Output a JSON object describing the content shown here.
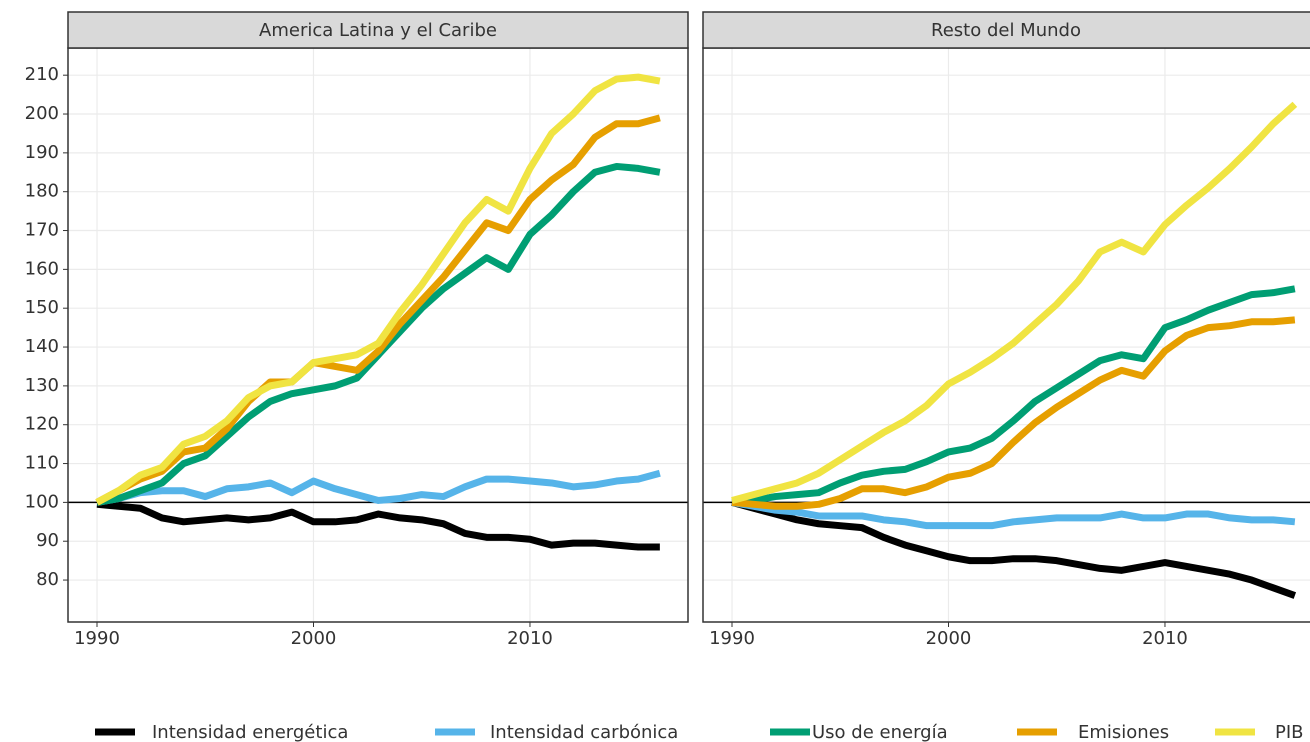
{
  "chart_data": [
    {
      "type": "line",
      "title": "America Latina y el Caribe",
      "x": [
        1990,
        1991,
        1992,
        1993,
        1994,
        1995,
        1996,
        1997,
        1998,
        1999,
        2000,
        2001,
        2002,
        2003,
        2004,
        2005,
        2006,
        2007,
        2008,
        2009,
        2010,
        2011,
        2012,
        2013,
        2014,
        2015,
        2016
      ],
      "xlim": [
        1988.66,
        2017.3
      ],
      "xticks": [
        1990,
        2000,
        2010
      ],
      "ylim": [
        69.2,
        217
      ],
      "yticks": [
        80,
        90,
        100,
        110,
        120,
        130,
        140,
        150,
        160,
        170,
        180,
        190,
        200,
        210
      ],
      "hline": 100,
      "grid": true,
      "legend": "bottom",
      "series": [
        {
          "name": "Intensidad energética",
          "color": "#000000",
          "values": [
            99.5,
            99,
            98.5,
            96,
            95,
            95.5,
            96,
            95.5,
            96,
            97.5,
            95,
            95,
            95.5,
            97,
            96,
            95.5,
            94.5,
            92,
            91,
            91,
            90.5,
            89,
            89.5,
            89.5,
            89,
            88.5,
            88.5
          ]
        },
        {
          "name": "Intensidad carbónica",
          "color": "#56b4e9",
          "values": [
            100,
            101,
            102.5,
            103,
            103,
            101.5,
            103.5,
            104,
            105,
            102.5,
            105.5,
            103.5,
            102,
            100.5,
            101,
            102,
            101.5,
            104,
            106,
            106,
            105.5,
            105,
            104,
            104.5,
            105.5,
            106,
            107.5
          ]
        },
        {
          "name": "Uso de energía",
          "color": "#009e73",
          "values": [
            100,
            101,
            103,
            105,
            110,
            112,
            117,
            122,
            126,
            128,
            129,
            130,
            132,
            138,
            144,
            150,
            155,
            159,
            163,
            160,
            169,
            174,
            180,
            185,
            186.5,
            186,
            185
          ]
        },
        {
          "name": "Emisiones",
          "color": "#e69f00",
          "values": [
            100,
            103,
            106,
            108,
            113,
            114,
            119,
            126,
            131,
            131,
            136,
            135,
            134,
            139,
            146,
            152,
            158,
            165,
            172,
            170,
            178,
            183,
            187,
            194,
            197.5,
            197.5,
            199
          ]
        },
        {
          "name": "PIB",
          "color": "#f0e442",
          "values": [
            100,
            103,
            107,
            109,
            115,
            117,
            121,
            127,
            130,
            131,
            136,
            137,
            138,
            141,
            149,
            156,
            164,
            172,
            178,
            175,
            186,
            195,
            200,
            206,
            209,
            209.5,
            208.5
          ]
        }
      ]
    },
    {
      "type": "line",
      "title": "Resto del Mundo",
      "x": [
        1990,
        1991,
        1992,
        1993,
        1994,
        1995,
        1996,
        1997,
        1998,
        1999,
        2000,
        2001,
        2002,
        2003,
        2004,
        2005,
        2006,
        2007,
        2008,
        2009,
        2010,
        2011,
        2012,
        2013,
        2014,
        2015,
        2016
      ],
      "xlim": [
        1988.66,
        2017.3
      ],
      "xticks": [
        1990,
        2000,
        2010
      ],
      "ylim": [
        69.2,
        217
      ],
      "hline": 100,
      "grid": true,
      "series": [
        {
          "color": "#000000",
          "values": [
            100,
            98.5,
            97,
            95.5,
            94.5,
            94,
            93.5,
            91,
            89,
            87.5,
            86,
            85,
            85,
            85.5,
            85.5,
            85,
            84,
            83,
            82.5,
            83.5,
            84.5,
            83.5,
            82.5,
            81.5,
            80,
            78,
            76
          ]
        },
        {
          "color": "#56b4e9",
          "values": [
            100,
            99,
            98,
            97.5,
            96.5,
            96.5,
            96.5,
            95.5,
            95,
            94,
            94,
            94,
            94,
            95,
            95.5,
            96,
            96,
            96,
            97,
            96,
            96,
            97,
            97,
            96,
            95.5,
            95.5,
            95
          ]
        },
        {
          "color": "#009e73",
          "values": [
            100,
            100.5,
            101.5,
            102,
            102.5,
            105,
            107,
            108,
            108.5,
            110.5,
            113,
            114,
            116.5,
            121,
            126,
            129.5,
            133,
            136.5,
            138,
            137,
            145,
            147,
            149.5,
            151.5,
            153.5,
            154,
            155
          ]
        },
        {
          "color": "#e69f00",
          "values": [
            100,
            99.5,
            99,
            99,
            99.5,
            101,
            103.5,
            103.5,
            102.5,
            104,
            106.5,
            107.5,
            110,
            115.5,
            120.5,
            124.5,
            128,
            131.5,
            134,
            132.5,
            139,
            143,
            145,
            145.5,
            146.5,
            146.5,
            147
          ]
        },
        {
          "color": "#f0e442",
          "values": [
            100.5,
            102,
            103.5,
            105,
            107.5,
            111,
            114.5,
            118,
            121,
            125,
            130.5,
            133.5,
            137,
            141,
            146,
            151,
            157,
            164.5,
            167,
            164.5,
            171.5,
            176.5,
            181,
            186,
            191.5,
            197.5,
            202.5
          ]
        }
      ]
    }
  ]
}
